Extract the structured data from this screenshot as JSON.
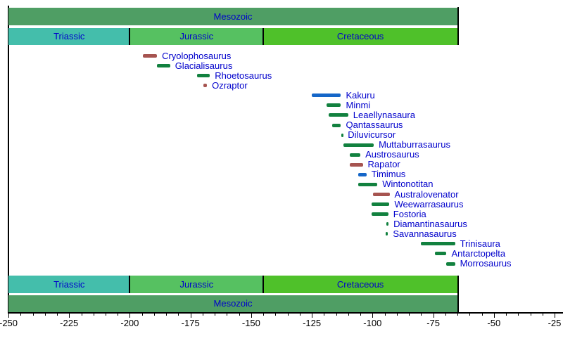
{
  "colors": {
    "bar_green": "#12813F",
    "bar_blue": "#1566C8",
    "bar_red": "#A65450",
    "era_band": "#4F9E64",
    "triassic_band": "#44BEAB",
    "jurassic_band": "#56C161",
    "cretaceous_band": "#4FC12A",
    "label_blue": "#0000CC",
    "axis_black": "#000000"
  },
  "chart_data": {
    "type": "bar",
    "subtype": "horizontal-range-timeline",
    "title": "",
    "xlabel": "",
    "ylabel": "",
    "xlim": [
      -250,
      -25
    ],
    "grid": false,
    "era": {
      "label": "Mesozoic",
      "from": -250,
      "to": -65
    },
    "periods": [
      {
        "label": "Triassic",
        "from": -250,
        "to": -200,
        "color_key": "triassic_band"
      },
      {
        "label": "Jurassic",
        "from": -200,
        "to": -145,
        "color_key": "jurassic_band"
      },
      {
        "label": "Cretaceous",
        "from": -145,
        "to": -65,
        "color_key": "cretaceous_band"
      }
    ],
    "axis": {
      "major_step": 25,
      "minor_step": 5,
      "tick_labels": [
        "-250",
        "-225",
        "-200",
        "-175",
        "-150",
        "-125",
        "-100",
        "-75",
        "-50",
        "-25"
      ]
    },
    "taxa": [
      {
        "name": "Cryolophosaurus",
        "from": -194.6,
        "to": -188.8,
        "color_key": "bar_red"
      },
      {
        "name": "Glacialisaurus",
        "from": -188.8,
        "to": -183.4,
        "color_key": "bar_green"
      },
      {
        "name": "Rhoetosaurus",
        "from": -172.3,
        "to": -167.0,
        "color_key": "bar_green"
      },
      {
        "name": "Ozraptor",
        "from": -169.6,
        "to": -168.2,
        "color_key": "bar_red"
      },
      {
        "name": "Kakuru",
        "from": -125.0,
        "to": -113.0,
        "color_key": "bar_blue"
      },
      {
        "name": "Minmi",
        "from": -119.0,
        "to": -113.0,
        "color_key": "bar_green"
      },
      {
        "name": "Leaellynasaura",
        "from": -118.0,
        "to": -110.0,
        "color_key": "bar_green"
      },
      {
        "name": "Qantassaurus",
        "from": -116.6,
        "to": -113.0,
        "color_key": "bar_green"
      },
      {
        "name": "Diluvicursor",
        "from": -113.0,
        "to": -112.2,
        "color_key": "bar_green"
      },
      {
        "name": "Muttaburrasaurus",
        "from": -112.0,
        "to": -99.5,
        "color_key": "bar_green"
      },
      {
        "name": "Austrosaurus",
        "from": -109.5,
        "to": -105.0,
        "color_key": "bar_green"
      },
      {
        "name": "Rapator",
        "from": -109.5,
        "to": -104.0,
        "color_key": "bar_red"
      },
      {
        "name": "Timimus",
        "from": -106.0,
        "to": -102.5,
        "color_key": "bar_blue"
      },
      {
        "name": "Wintonotitan",
        "from": -106.0,
        "to": -98.0,
        "color_key": "bar_green"
      },
      {
        "name": "Australovenator",
        "from": -99.8,
        "to": -93.0,
        "color_key": "bar_red"
      },
      {
        "name": "Weewarrasaurus",
        "from": -100.3,
        "to": -93.0,
        "color_key": "bar_green"
      },
      {
        "name": "Fostoria",
        "from": -100.3,
        "to": -93.5,
        "color_key": "bar_green"
      },
      {
        "name": "Diamantinasaurus",
        "from": -94.3,
        "to": -93.4,
        "color_key": "bar_green"
      },
      {
        "name": "Savannasaurus",
        "from": -94.6,
        "to": -93.6,
        "color_key": "bar_green"
      },
      {
        "name": "Trinisaura",
        "from": -80.0,
        "to": -66.0,
        "color_key": "bar_green"
      },
      {
        "name": "Antarctopelta",
        "from": -74.2,
        "to": -69.5,
        "color_key": "bar_green"
      },
      {
        "name": "Morrosaurus",
        "from": -69.8,
        "to": -66.0,
        "color_key": "bar_green"
      }
    ]
  }
}
